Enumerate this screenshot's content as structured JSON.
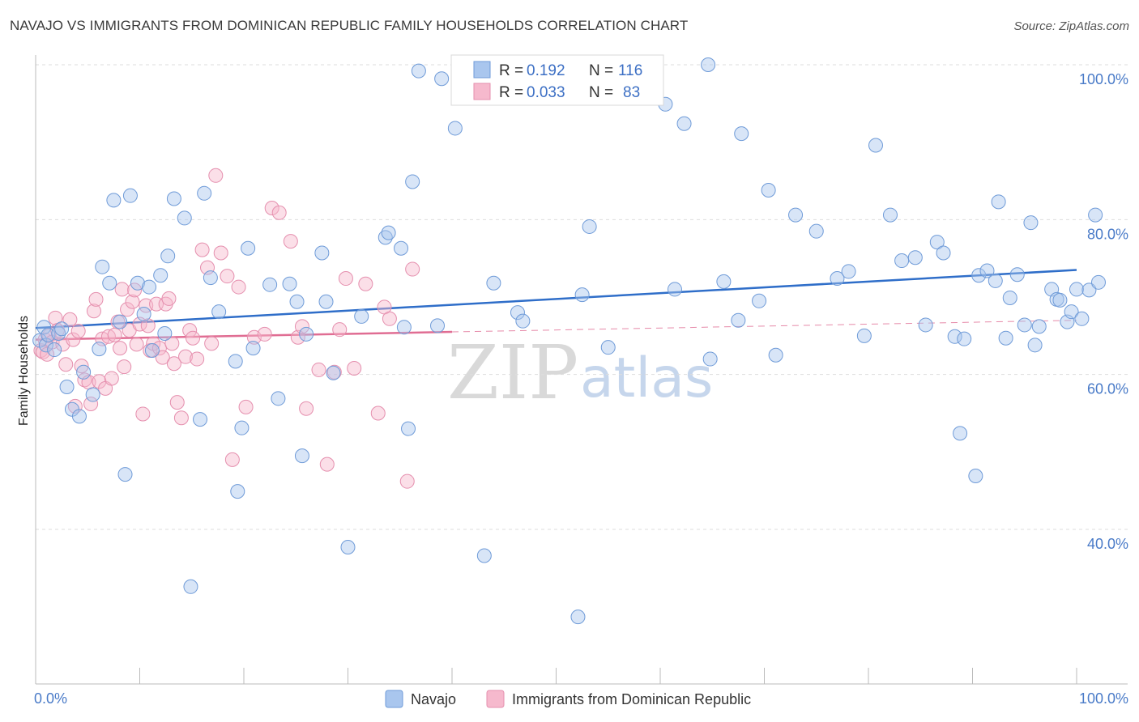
{
  "title": "NAVAJO VS IMMIGRANTS FROM DOMINICAN REPUBLIC FAMILY HOUSEHOLDS CORRELATION CHART",
  "source": "Source: ZipAtlas.com",
  "watermark": {
    "zip": "ZIP",
    "atlas": "atlas"
  },
  "colors": {
    "navajo_fill": "#a9c6ee",
    "navajo_stroke": "#6f9bd8",
    "navajo_line": "#2f6ec9",
    "dominican_fill": "#f6b9cd",
    "dominican_stroke": "#e58fae",
    "dominican_line": "#e06d93",
    "grid": "#dddddd",
    "tick_text": "#4a7bc8"
  },
  "legend": {
    "rows": [
      {
        "r_label": "R =",
        "r_value": "0.192",
        "n_label": "N =",
        "n_value": "116"
      },
      {
        "r_label": "R =",
        "r_value": "0.033",
        "n_label": "N =",
        "n_value": "83"
      }
    ]
  },
  "chart_data": {
    "type": "scatter",
    "title": "NAVAJO VS IMMIGRANTS FROM DOMINICAN REPUBLIC FAMILY HOUSEHOLDS CORRELATION CHART",
    "xlabel": "",
    "ylabel": "Family Households",
    "xlim": [
      0,
      100
    ],
    "ylim": [
      20,
      102
    ],
    "x_tick_labels": [
      "0.0%",
      "100.0%"
    ],
    "y_ticks": [
      40,
      60,
      80,
      100
    ],
    "y_tick_labels": [
      "40.0%",
      "60.0%",
      "80.0%",
      "100.0%"
    ],
    "grid": true,
    "legend_position": "top-center",
    "series": [
      {
        "name": "Navajo",
        "R": 0.192,
        "N": 116,
        "trend": {
          "x": [
            0,
            100
          ],
          "y": [
            66.0,
            73.5
          ]
        },
        "points": [
          [
            0.4,
            64.4
          ],
          [
            0.8,
            66.1
          ],
          [
            1.0,
            63.8
          ],
          [
            1.2,
            65.1
          ],
          [
            1.8,
            63.2
          ],
          [
            2.2,
            65.3
          ],
          [
            2.5,
            65.9
          ],
          [
            3.0,
            58.4
          ],
          [
            3.5,
            55.5
          ],
          [
            4.2,
            54.6
          ],
          [
            4.6,
            60.3
          ],
          [
            5.5,
            57.4
          ],
          [
            6.1,
            63.3
          ],
          [
            6.4,
            73.9
          ],
          [
            7.1,
            71.8
          ],
          [
            7.5,
            82.5
          ],
          [
            8.1,
            66.8
          ],
          [
            8.6,
            47.1
          ],
          [
            9.1,
            83.1
          ],
          [
            9.8,
            71.8
          ],
          [
            10.4,
            67.8
          ],
          [
            10.9,
            71.3
          ],
          [
            11.2,
            63.1
          ],
          [
            12.0,
            72.8
          ],
          [
            12.4,
            65.3
          ],
          [
            12.7,
            75.3
          ],
          [
            13.3,
            82.7
          ],
          [
            14.3,
            80.2
          ],
          [
            14.9,
            32.6
          ],
          [
            15.8,
            54.2
          ],
          [
            16.2,
            83.4
          ],
          [
            16.8,
            72.5
          ],
          [
            17.6,
            68.1
          ],
          [
            19.2,
            61.7
          ],
          [
            19.4,
            44.9
          ],
          [
            19.8,
            53.1
          ],
          [
            20.4,
            76.3
          ],
          [
            20.9,
            63.4
          ],
          [
            22.5,
            71.6
          ],
          [
            23.3,
            56.9
          ],
          [
            24.4,
            71.7
          ],
          [
            25.1,
            69.4
          ],
          [
            25.6,
            49.5
          ],
          [
            26.0,
            65.2
          ],
          [
            27.5,
            75.7
          ],
          [
            27.9,
            69.4
          ],
          [
            28.6,
            60.2
          ],
          [
            30.0,
            37.7
          ],
          [
            31.3,
            67.5
          ],
          [
            33.6,
            77.7
          ],
          [
            33.9,
            78.3
          ],
          [
            35.1,
            76.3
          ],
          [
            35.4,
            66.1
          ],
          [
            35.8,
            53.0
          ],
          [
            36.2,
            84.9
          ],
          [
            38.6,
            66.3
          ],
          [
            39.0,
            98.2
          ],
          [
            40.3,
            91.8
          ],
          [
            41.1,
            100.0
          ],
          [
            43.1,
            36.6
          ],
          [
            36.8,
            99.2
          ],
          [
            44.0,
            71.8
          ],
          [
            46.3,
            68.0
          ],
          [
            46.8,
            66.9
          ],
          [
            52.1,
            28.7
          ],
          [
            52.5,
            70.3
          ],
          [
            53.2,
            79.1
          ],
          [
            55.0,
            63.5
          ],
          [
            60.5,
            94.9
          ],
          [
            61.4,
            71.0
          ],
          [
            62.3,
            92.4
          ],
          [
            64.8,
            62.0
          ],
          [
            66.1,
            72.0
          ],
          [
            67.5,
            67.0
          ],
          [
            67.8,
            91.1
          ],
          [
            69.5,
            69.5
          ],
          [
            70.4,
            83.8
          ],
          [
            71.1,
            62.5
          ],
          [
            73.0,
            80.6
          ],
          [
            75.0,
            78.5
          ],
          [
            77.0,
            72.4
          ],
          [
            78.1,
            73.3
          ],
          [
            79.6,
            65.0
          ],
          [
            80.7,
            89.6
          ],
          [
            82.1,
            80.6
          ],
          [
            83.2,
            74.7
          ],
          [
            84.5,
            75.1
          ],
          [
            85.5,
            66.4
          ],
          [
            86.6,
            77.1
          ],
          [
            87.2,
            75.7
          ],
          [
            88.3,
            64.9
          ],
          [
            88.8,
            52.4
          ],
          [
            89.2,
            64.6
          ],
          [
            90.3,
            46.9
          ],
          [
            90.6,
            72.8
          ],
          [
            91.4,
            73.4
          ],
          [
            92.2,
            72.1
          ],
          [
            92.5,
            82.3
          ],
          [
            93.2,
            64.7
          ],
          [
            93.6,
            69.9
          ],
          [
            94.3,
            72.9
          ],
          [
            95.0,
            66.4
          ],
          [
            95.6,
            79.6
          ],
          [
            96.0,
            63.8
          ],
          [
            96.4,
            66.2
          ],
          [
            97.6,
            71.0
          ],
          [
            98.1,
            69.7
          ],
          [
            98.4,
            69.6
          ],
          [
            99.1,
            66.8
          ],
          [
            99.5,
            68.1
          ],
          [
            100.0,
            71.0
          ],
          [
            100.5,
            67.2
          ],
          [
            101.2,
            70.9
          ],
          [
            101.8,
            80.6
          ],
          [
            102.1,
            71.9
          ],
          [
            64.6,
            100.0
          ]
        ]
      },
      {
        "name": "Immigrants from Dominican Republic",
        "R": 0.033,
        "N": 83,
        "trend": {
          "x": [
            0,
            40
          ],
          "y": [
            64.5,
            65.5
          ]
        },
        "trend_extension": {
          "x": [
            40,
            100
          ],
          "y": [
            65.5,
            67.0
          ]
        },
        "points": [
          [
            0.5,
            63.1
          ],
          [
            0.9,
            64.5
          ],
          [
            1.3,
            65.0
          ],
          [
            1.6,
            64.2
          ],
          [
            1.9,
            67.3
          ],
          [
            2.1,
            65.7
          ],
          [
            2.6,
            63.9
          ],
          [
            2.9,
            61.3
          ],
          [
            3.3,
            67.1
          ],
          [
            3.6,
            64.5
          ],
          [
            3.8,
            55.9
          ],
          [
            4.1,
            65.6
          ],
          [
            4.4,
            61.1
          ],
          [
            4.7,
            59.3
          ],
          [
            5.1,
            59.0
          ],
          [
            5.3,
            56.2
          ],
          [
            5.6,
            68.2
          ],
          [
            5.8,
            69.7
          ],
          [
            6.1,
            59.1
          ],
          [
            6.4,
            64.6
          ],
          [
            6.7,
            58.2
          ],
          [
            7.0,
            64.9
          ],
          [
            7.3,
            59.5
          ],
          [
            7.6,
            65.1
          ],
          [
            7.9,
            66.8
          ],
          [
            8.1,
            63.4
          ],
          [
            8.3,
            71.0
          ],
          [
            8.5,
            61.0
          ],
          [
            8.8,
            68.4
          ],
          [
            9.0,
            65.7
          ],
          [
            9.3,
            69.4
          ],
          [
            9.5,
            70.9
          ],
          [
            9.7,
            63.9
          ],
          [
            10.0,
            66.5
          ],
          [
            10.3,
            54.9
          ],
          [
            10.6,
            68.9
          ],
          [
            10.8,
            66.3
          ],
          [
            11.0,
            63.1
          ],
          [
            11.3,
            64.0
          ],
          [
            11.6,
            69.1
          ],
          [
            11.9,
            63.4
          ],
          [
            12.2,
            62.2
          ],
          [
            12.5,
            69.1
          ],
          [
            12.8,
            69.8
          ],
          [
            13.1,
            64.0
          ],
          [
            13.3,
            61.4
          ],
          [
            13.6,
            56.4
          ],
          [
            14.0,
            54.4
          ],
          [
            14.4,
            62.3
          ],
          [
            14.8,
            65.7
          ],
          [
            15.1,
            64.7
          ],
          [
            15.5,
            62.0
          ],
          [
            16.0,
            76.1
          ],
          [
            16.5,
            73.8
          ],
          [
            16.9,
            64.0
          ],
          [
            17.3,
            85.7
          ],
          [
            17.8,
            75.7
          ],
          [
            18.4,
            72.7
          ],
          [
            18.9,
            49.0
          ],
          [
            19.5,
            71.3
          ],
          [
            20.2,
            55.8
          ],
          [
            21.0,
            64.8
          ],
          [
            22.0,
            65.2
          ],
          [
            22.7,
            81.5
          ],
          [
            23.4,
            80.9
          ],
          [
            24.5,
            77.2
          ],
          [
            25.2,
            64.8
          ],
          [
            25.6,
            66.2
          ],
          [
            26.0,
            55.6
          ],
          [
            27.2,
            60.6
          ],
          [
            28.0,
            48.4
          ],
          [
            28.7,
            60.3
          ],
          [
            29.2,
            65.8
          ],
          [
            29.8,
            72.4
          ],
          [
            30.6,
            60.8
          ],
          [
            31.7,
            71.7
          ],
          [
            32.9,
            55.0
          ],
          [
            33.5,
            68.7
          ],
          [
            34.0,
            67.2
          ],
          [
            35.7,
            46.2
          ],
          [
            36.2,
            73.6
          ],
          [
            0.7,
            62.9
          ],
          [
            1.1,
            62.6
          ]
        ]
      }
    ]
  },
  "bottom_legend": [
    {
      "label": "Navajo"
    },
    {
      "label": "Immigrants from Dominican Republic"
    }
  ]
}
